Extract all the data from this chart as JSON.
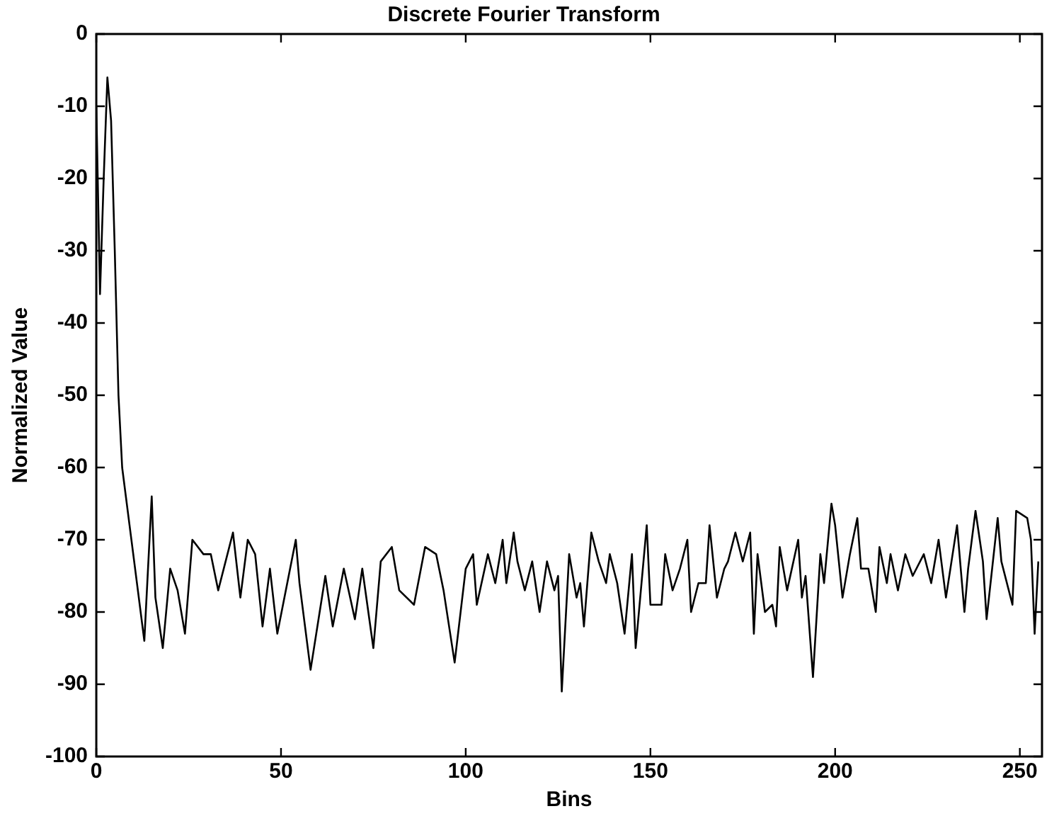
{
  "chart_data": {
    "type": "line",
    "title": "Discrete Fourier Transform",
    "xlabel": "Bins",
    "ylabel": "Normalized Value",
    "x": [
      0,
      1,
      2,
      3,
      4,
      5,
      6,
      7,
      9,
      11,
      13,
      15,
      16,
      18,
      20,
      22,
      24,
      26,
      29,
      31,
      33,
      37,
      39,
      41,
      43,
      45,
      47,
      49,
      54,
      55,
      58,
      62,
      64,
      67,
      70,
      72,
      75,
      77,
      80,
      82,
      86,
      89,
      92,
      94,
      97,
      100,
      102,
      103,
      106,
      108,
      110,
      111,
      113,
      114,
      116,
      118,
      120,
      122,
      124,
      125,
      126,
      128,
      130,
      131,
      132,
      134,
      136,
      138,
      139,
      141,
      143,
      145,
      146,
      149,
      150,
      153,
      154,
      156,
      158,
      160,
      161,
      163,
      165,
      166,
      168,
      170,
      171,
      173,
      175,
      177,
      178,
      179,
      181,
      183,
      184,
      185,
      187,
      190,
      191,
      192,
      194,
      196,
      197,
      199,
      200,
      202,
      204,
      206,
      207,
      209,
      211,
      212,
      214,
      215,
      217,
      219,
      221,
      224,
      226,
      228,
      230,
      233,
      235,
      236,
      238,
      240,
      241,
      244,
      245,
      248,
      249,
      252,
      253,
      254,
      255
    ],
    "series": [
      {
        "color": "#000000",
        "values": [
          -10,
          -36,
          -20,
          -6,
          -12,
          -30,
          -50,
          -60,
          -68,
          -76,
          -84,
          -64,
          -78,
          -85,
          -74,
          -77,
          -83,
          -70,
          -72,
          -72,
          -77,
          -69,
          -78,
          -70,
          -72,
          -82,
          -74,
          -83,
          -70,
          -76,
          -88,
          -75,
          -82,
          -74,
          -81,
          -74,
          -85,
          -73,
          -71,
          -77,
          -79,
          -71,
          -72,
          -77,
          -87,
          -74,
          -72,
          -79,
          -72,
          -76,
          -70,
          -76,
          -69,
          -73,
          -77,
          -73,
          -80,
          -73,
          -77,
          -75,
          -91,
          -72,
          -78,
          -76,
          -82,
          -69,
          -73,
          -76,
          -72,
          -76,
          -83,
          -72,
          -85,
          -68,
          -79,
          -79,
          -72,
          -77,
          -74,
          -70,
          -80,
          -76,
          -76,
          -68,
          -78,
          -74,
          -73,
          -69,
          -73,
          -69,
          -83,
          -72,
          -80,
          -79,
          -82,
          -71,
          -77,
          -70,
          -78,
          -75,
          -89,
          -72,
          -76,
          -65,
          -68,
          -78,
          -72,
          -67,
          -74,
          -74,
          -80,
          -71,
          -76,
          -72,
          -77,
          -72,
          -75,
          -72,
          -76,
          -70,
          -78,
          -68,
          -80,
          -74,
          -66,
          -73,
          -81,
          -67,
          -73,
          -79,
          -66,
          -67,
          -70,
          -83,
          -73
        ]
      }
    ],
    "xlim": [
      0,
      256
    ],
    "ylim": [
      -100,
      0
    ],
    "xticks": [
      0,
      50,
      100,
      150,
      200,
      250
    ],
    "yticks": [
      -100,
      -90,
      -80,
      -70,
      -60,
      -50,
      -40,
      -30,
      -20,
      -10,
      0
    ],
    "grid": false,
    "legend": false,
    "marker": "none",
    "line_style": "solid"
  }
}
